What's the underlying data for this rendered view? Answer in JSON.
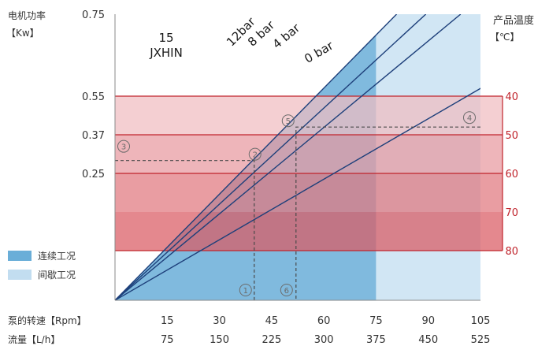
{
  "chart_data": {
    "type": "line",
    "title": "15\nJXHIN",
    "left_axis": {
      "label_line1": "电机功率",
      "label_line2": "【Kw】",
      "ticks": [
        0.75,
        0.55,
        0.37,
        0.25
      ],
      "tick_labels": [
        "0.75",
        "0.55",
        "0.37",
        "0.25"
      ]
    },
    "right_axis": {
      "label_line1": "产品温度",
      "label_line2": "【℃】",
      "ticks": [
        40,
        50,
        60,
        70,
        80
      ],
      "tick_labels": [
        "40",
        "50",
        "60",
        "70",
        "80"
      ]
    },
    "x_axis": {
      "rpm_label": "泵的转速【Rpm】",
      "flow_label": "流量【L/h】",
      "rpm_ticks": [
        15,
        30,
        45,
        60,
        75,
        90,
        105
      ],
      "rpm_labels": [
        "15",
        "30",
        "45",
        "60",
        "75",
        "90",
        "105"
      ],
      "flow_labels": [
        "75",
        "150",
        "225",
        "300",
        "375",
        "450",
        "525"
      ],
      "range": [
        0,
        105
      ]
    },
    "series": [
      {
        "name": "12bar",
        "x": [
          0,
          80.9
        ],
        "y": [
          0,
          0.75
        ]
      },
      {
        "name": "8 bar",
        "x": [
          0,
          89.3
        ],
        "y": [
          0,
          0.75
        ]
      },
      {
        "name": "4 bar",
        "x": [
          0,
          99.3
        ],
        "y": [
          0,
          0.75
        ]
      },
      {
        "name": "0 bar",
        "x": [
          0,
          141.8
        ],
        "y": [
          0,
          0.75
        ]
      }
    ],
    "regions": [
      {
        "name": "连续工况",
        "rpm_range": [
          0,
          75
        ],
        "color": "#6aaed8"
      },
      {
        "name": "间歇工况",
        "rpm_range": [
          75,
          105
        ],
        "color": "#c2ddf0"
      }
    ],
    "temperature_bands": [
      {
        "from": 40,
        "to": 50,
        "color": "#f0bcc0"
      },
      {
        "from": 50,
        "to": 60,
        "color": "#e8999f"
      },
      {
        "from": 60,
        "to": 70,
        "color": "#e1777e"
      },
      {
        "from": 70,
        "to": 80,
        "color": "#d95a62"
      }
    ],
    "annotations": [
      {
        "id": "1",
        "rpm": 40,
        "kind": "rpm-reading"
      },
      {
        "id": "2",
        "rpm": 40,
        "kw": 0.29,
        "kind": "intersection"
      },
      {
        "id": "3",
        "kw": 0.29,
        "kind": "power-reading"
      },
      {
        "id": "4",
        "temp": 48,
        "kind": "temperature-reading"
      },
      {
        "id": "5",
        "rpm": 52,
        "temp": 48,
        "kind": "intersection"
      },
      {
        "id": "6",
        "rpm": 52,
        "kind": "rpm-reading"
      }
    ],
    "legend": {
      "items": [
        {
          "label": "连续工况",
          "color": "#6aaed8"
        },
        {
          "label": "间歇工况",
          "color": "#c2ddf0"
        }
      ],
      "position": "bottom-left"
    }
  }
}
